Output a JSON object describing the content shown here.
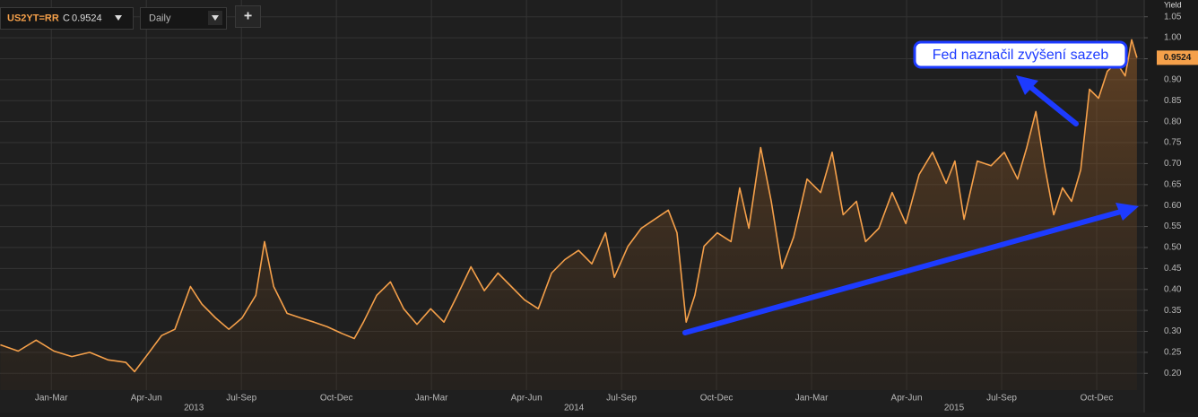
{
  "chart_data": {
    "type": "line",
    "y_axis_label": "Yield",
    "interval": "Daily",
    "add_button": "+",
    "close_prefix": "C",
    "annotation": "Fed naznačil zvýšení sazeb",
    "grid": true,
    "xlim": [
      2012.99,
      2016.0
    ],
    "xticks": [
      {
        "value": 2013.125,
        "label": "Jan-Mar"
      },
      {
        "value": 2013.375,
        "label": "Apr-Jun"
      },
      {
        "value": 2013.625,
        "label": "Jul-Sep"
      },
      {
        "value": 2013.875,
        "label": "Oct-Dec"
      },
      {
        "value": 2014.125,
        "label": "Jan-Mar"
      },
      {
        "value": 2014.375,
        "label": "Apr-Jun"
      },
      {
        "value": 2014.625,
        "label": "Jul-Sep"
      },
      {
        "value": 2014.875,
        "label": "Oct-Dec"
      },
      {
        "value": 2015.125,
        "label": "Jan-Mar"
      },
      {
        "value": 2015.375,
        "label": "Apr-Jun"
      },
      {
        "value": 2015.625,
        "label": "Jul-Sep"
      },
      {
        "value": 2015.875,
        "label": "Oct-Dec"
      }
    ],
    "year_ticks": [
      {
        "value": 2013.5,
        "label": "2013"
      },
      {
        "value": 2014.5,
        "label": "2014"
      },
      {
        "value": 2015.5,
        "label": "2015"
      }
    ],
    "ylim": [
      0.16,
      1.09
    ],
    "yticks": [
      {
        "value": 0.2,
        "label": "0.20"
      },
      0.25,
      {
        "value": 0.3,
        "label": "0.30"
      },
      0.35,
      {
        "value": 0.4,
        "label": "0.40"
      },
      0.45,
      {
        "value": 0.5,
        "label": "0.50"
      },
      0.55,
      {
        "value": 0.6,
        "label": "0.60"
      },
      0.65,
      {
        "value": 0.7,
        "label": "0.70"
      },
      0.75,
      {
        "value": 0.8,
        "label": "0.80"
      },
      0.85,
      {
        "value": 0.9,
        "label": "0.90"
      },
      0.95,
      {
        "value": 1.0,
        "label": "1.00"
      },
      1.05
    ],
    "x": [
      2012.991,
      2013.038,
      2013.085,
      2013.132,
      2013.179,
      2013.226,
      2013.274,
      2013.321,
      2013.344,
      2013.38,
      2013.415,
      2013.45,
      2013.474,
      2013.491,
      2013.521,
      2013.557,
      2013.592,
      2013.627,
      2013.663,
      2013.686,
      2013.71,
      2013.745,
      2013.781,
      2013.816,
      2013.851,
      2013.887,
      2013.922,
      2013.946,
      2013.981,
      2014.017,
      2014.052,
      2014.087,
      2014.123,
      2014.158,
      2014.193,
      2014.229,
      2014.264,
      2014.3,
      2014.335,
      2014.37,
      2014.406,
      2014.441,
      2014.476,
      2014.512,
      2014.547,
      2014.583,
      2014.606,
      2014.642,
      2014.677,
      2014.712,
      2014.748,
      2014.771,
      2014.795,
      2014.818,
      2014.842,
      2014.877,
      2014.913,
      2014.936,
      2014.96,
      2014.991,
      2015.019,
      2015.047,
      2015.078,
      2015.113,
      2015.149,
      2015.179,
      2015.208,
      2015.243,
      2015.267,
      2015.302,
      2015.337,
      2015.373,
      2015.408,
      2015.443,
      2015.479,
      2015.502,
      2015.526,
      2015.561,
      2015.597,
      2015.632,
      2015.667,
      2015.691,
      2015.715,
      2015.738,
      2015.762,
      2015.785,
      2015.809,
      2015.833,
      2015.856,
      2015.88,
      2015.903,
      2015.927,
      2015.95,
      2015.967,
      2015.981
    ],
    "series": [
      {
        "name": "US2YT=RR",
        "color": "#f5a04a",
        "values": [
          0.268,
          0.253,
          0.279,
          0.253,
          0.24,
          0.25,
          0.232,
          0.226,
          0.204,
          0.247,
          0.29,
          0.305,
          0.365,
          0.407,
          0.365,
          0.332,
          0.305,
          0.332,
          0.386,
          0.514,
          0.407,
          0.343,
          0.332,
          0.322,
          0.311,
          0.296,
          0.283,
          0.322,
          0.386,
          0.418,
          0.354,
          0.317,
          0.354,
          0.322,
          0.386,
          0.454,
          0.397,
          0.439,
          0.407,
          0.375,
          0.354,
          0.439,
          0.471,
          0.493,
          0.461,
          0.535,
          0.429,
          0.503,
          0.546,
          0.567,
          0.589,
          0.535,
          0.322,
          0.386,
          0.503,
          0.535,
          0.514,
          0.642,
          0.546,
          0.738,
          0.61,
          0.45,
          0.525,
          0.663,
          0.631,
          0.727,
          0.578,
          0.61,
          0.514,
          0.546,
          0.631,
          0.557,
          0.674,
          0.727,
          0.653,
          0.706,
          0.567,
          0.706,
          0.695,
          0.727,
          0.663,
          0.738,
          0.824,
          0.695,
          0.578,
          0.642,
          0.61,
          0.685,
          0.877,
          0.856,
          0.92,
          0.941,
          0.909,
          0.995,
          0.9524
        ]
      }
    ]
  }
}
